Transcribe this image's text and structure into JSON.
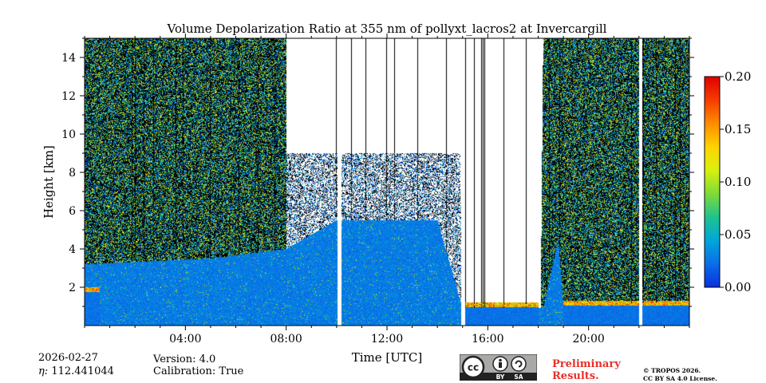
{
  "chart_data": {
    "type": "heatmap",
    "title": "Volume Depolarization Ratio at 355 nm of pollyxt_lacros2 at Invercargill",
    "xlabel": "Time [UTC]",
    "ylabel": "Height [km]",
    "xlim": [
      0,
      24
    ],
    "ylim": [
      0,
      15
    ],
    "x_ticks": [
      4,
      8,
      12,
      16,
      20
    ],
    "x_tick_labels": [
      "04:00",
      "08:00",
      "12:00",
      "16:00",
      "20:00"
    ],
    "y_ticks": [
      2,
      4,
      6,
      8,
      10,
      12,
      14
    ],
    "y_tick_labels": [
      "2",
      "4",
      "6",
      "8",
      "10",
      "12",
      "14"
    ],
    "colorbar": {
      "range": [
        0.0,
        0.2
      ],
      "ticks": [
        0.0,
        0.05,
        0.1,
        0.15,
        0.2
      ],
      "tick_labels": [
        "0.00",
        "0.05",
        "0.10",
        "0.15",
        "0.20"
      ],
      "colors": [
        "#0a2fe0",
        "#0a6ee8",
        "#00a6d9",
        "#1fc38e",
        "#7fdb37",
        "#d8f00f",
        "#ffd400",
        "#ff8c00",
        "#f53c00",
        "#e00000"
      ]
    },
    "noise_top_km": [
      [
        0,
        15
      ],
      [
        8,
        15
      ],
      [
        8.01,
        9
      ],
      [
        14.9,
        9
      ],
      [
        15,
        0.9
      ],
      [
        18.1,
        0.9
      ],
      [
        18.2,
        15
      ],
      [
        24,
        15
      ]
    ],
    "dense_blue_top_km": [
      [
        0,
        3.2
      ],
      [
        5,
        3.5
      ],
      [
        8,
        4
      ],
      [
        10,
        5.5
      ],
      [
        14,
        5.5
      ],
      [
        15,
        0.9
      ],
      [
        18.2,
        0.9
      ],
      [
        18.8,
        4.5
      ],
      [
        19,
        1
      ],
      [
        24,
        1.3
      ]
    ],
    "boundary_layer": [
      {
        "from": 0,
        "to": 0.6,
        "top_km": 2.0
      },
      {
        "from": 15.1,
        "to": 18.0,
        "top_km": 1.2
      },
      {
        "from": 19.0,
        "to": 24.0,
        "top_km": 1.3
      }
    ],
    "data_gaps_h": [
      [
        10.05,
        10.2
      ],
      [
        14.95,
        15.1
      ],
      [
        22.0,
        22.12
      ]
    ]
  },
  "footer": {
    "date": "2026-02-27",
    "eta": "112.441044",
    "eta_label": "η: ",
    "version": "Version: 4.0",
    "calibration": "Calibration: True",
    "preliminary_line1": "Preliminary",
    "preliminary_line2": "Results.",
    "license_line1": "© TROPOS 2026.",
    "license_line2": "CC BY SA 4.0 License.",
    "cc_badge": {
      "cc": "cc",
      "by": "BY",
      "sa": "SA"
    }
  },
  "colors": {
    "accent_red": "#e8302a",
    "badge_bg": "#a9aaa8",
    "badge_dark": "#222222"
  }
}
